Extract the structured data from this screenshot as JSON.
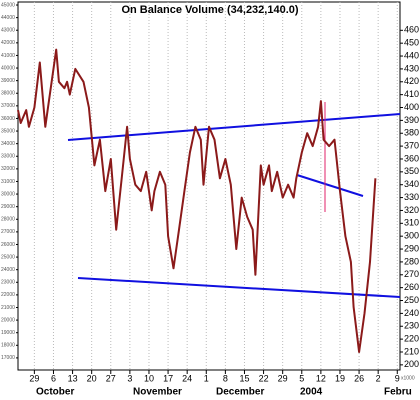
{
  "chart_data": {
    "type": "line",
    "title": "On Balance Volume (34,232,140.0)",
    "series": [
      {
        "name": "On Balance Volume",
        "color": "#8b1a1a",
        "x": [
          -6,
          -5,
          -3,
          -2,
          0,
          2,
          4,
          5,
          8,
          9,
          11,
          12,
          13,
          15,
          18,
          20,
          22,
          24,
          26,
          28,
          30,
          32,
          34,
          35,
          37,
          39,
          41,
          43,
          44,
          46,
          48,
          49,
          51,
          53,
          55,
          57,
          59,
          61,
          62,
          64,
          66,
          68,
          70,
          72,
          74,
          76,
          78,
          80,
          81,
          83,
          84,
          86,
          87,
          89,
          91,
          93,
          95,
          96,
          98,
          100,
          102,
          104,
          105,
          106,
          108,
          110,
          112,
          114,
          116,
          117,
          119,
          121,
          123,
          125
        ],
        "values": [
          398,
          388,
          398,
          385,
          400,
          435,
          385,
          400,
          445,
          420,
          415,
          420,
          410,
          430,
          420,
          400,
          355,
          375,
          335,
          360,
          305,
          345,
          385,
          360,
          340,
          335,
          350,
          320,
          335,
          350,
          340,
          300,
          275,
          305,
          335,
          365,
          385,
          375,
          340,
          385,
          375,
          345,
          360,
          340,
          290,
          330,
          315,
          305,
          270,
          355,
          340,
          355,
          335,
          350,
          330,
          340,
          330,
          345,
          365,
          380,
          370,
          385,
          405,
          375,
          370,
          375,
          335,
          300,
          280,
          245,
          210,
          240,
          280,
          345
        ]
      }
    ],
    "xlim": [
      -6,
      134
    ],
    "xticks": [
      {
        "value": 0,
        "label": "29"
      },
      {
        "value": 7,
        "label": "6"
      },
      {
        "value": 14,
        "label": "13"
      },
      {
        "value": 21,
        "label": "20"
      },
      {
        "value": 28,
        "label": "27"
      },
      {
        "value": 35,
        "label": "3"
      },
      {
        "value": 42,
        "label": "10"
      },
      {
        "value": 49,
        "label": "17"
      },
      {
        "value": 56,
        "label": "24"
      },
      {
        "value": 63,
        "label": "1"
      },
      {
        "value": 70,
        "label": "8"
      },
      {
        "value": 77,
        "label": "15"
      },
      {
        "value": 84,
        "label": "22"
      },
      {
        "value": 91,
        "label": "29"
      },
      {
        "value": 98,
        "label": "5"
      },
      {
        "value": 105,
        "label": "12"
      },
      {
        "value": 112,
        "label": "19"
      },
      {
        "value": 119,
        "label": "26"
      },
      {
        "value": 126,
        "label": "2"
      },
      {
        "value": 133,
        "label": "9"
      }
    ],
    "months": [
      "October",
      "November",
      "December",
      "2004",
      "Febru"
    ],
    "ylim": [
      196,
      482
    ],
    "yticks": [
      200,
      210,
      220,
      230,
      240,
      250,
      260,
      270,
      280,
      290,
      300,
      310,
      320,
      330,
      340,
      350,
      360,
      370,
      380,
      390,
      400,
      410,
      420,
      430,
      440,
      450,
      460
    ],
    "y_unit": "x1000",
    "y2lim": [
      16040,
      45240
    ],
    "y2ticks": [
      17000,
      18000,
      19000,
      20000,
      21000,
      22000,
      23000,
      24000,
      25000,
      26000,
      27000,
      28000,
      29000,
      30000,
      31000,
      32000,
      33000,
      34000,
      35000,
      36000,
      37000,
      38000,
      39000,
      40000,
      41000,
      42000,
      43000,
      44000,
      45000
    ],
    "grid": true
  }
}
